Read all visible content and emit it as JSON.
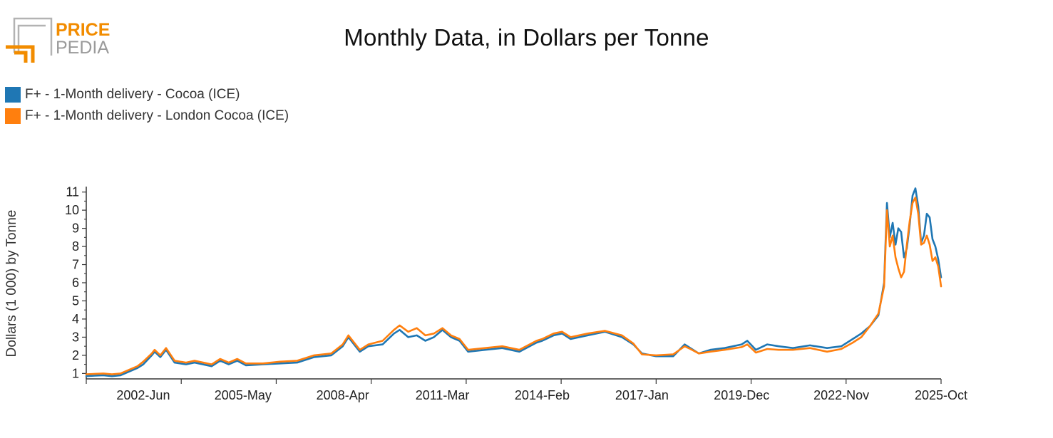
{
  "logo": {
    "line1": "PRICE",
    "line2": "PEDIA"
  },
  "chart_data": {
    "type": "line",
    "title": "Monthly Data, in Dollars per Tonne",
    "ylabel": "Dollars (1 000) by Tonne",
    "xlabel": "",
    "ylim": [
      0.7,
      11.3
    ],
    "y_ticks": [
      1,
      2,
      3,
      4,
      5,
      6,
      7,
      8,
      9,
      10,
      11
    ],
    "x_ticks": [
      "2002-Jun",
      "2005-May",
      "2008-Apr",
      "2011-Mar",
      "2014-Feb",
      "2017-Jan",
      "2019-Dec",
      "2022-Nov",
      "2025-Oct"
    ],
    "x_range": [
      "2000-Oct",
      "2025-Oct"
    ],
    "grid": false,
    "legend_position": "top-left",
    "series": [
      {
        "name": "F+ - 1-Month delivery - Cocoa (ICE)",
        "color": "#1f77b4",
        "points": [
          [
            "2000-10",
            0.85
          ],
          [
            "2001-01",
            0.88
          ],
          [
            "2001-04",
            0.9
          ],
          [
            "2001-07",
            0.85
          ],
          [
            "2001-10",
            0.9
          ],
          [
            "2002-01",
            1.1
          ],
          [
            "2002-04",
            1.3
          ],
          [
            "2002-06",
            1.5
          ],
          [
            "2002-09",
            2.0
          ],
          [
            "2002-10",
            2.2
          ],
          [
            "2002-12",
            1.9
          ],
          [
            "2003-02",
            2.3
          ],
          [
            "2003-05",
            1.6
          ],
          [
            "2003-09",
            1.5
          ],
          [
            "2003-12",
            1.6
          ],
          [
            "2004-06",
            1.4
          ],
          [
            "2004-09",
            1.7
          ],
          [
            "2004-12",
            1.5
          ],
          [
            "2005-03",
            1.7
          ],
          [
            "2005-06",
            1.45
          ],
          [
            "2005-12",
            1.5
          ],
          [
            "2006-06",
            1.55
          ],
          [
            "2006-12",
            1.6
          ],
          [
            "2007-06",
            1.9
          ],
          [
            "2007-12",
            2.0
          ],
          [
            "2008-04",
            2.5
          ],
          [
            "2008-06",
            3.0
          ],
          [
            "2008-10",
            2.2
          ],
          [
            "2009-01",
            2.5
          ],
          [
            "2009-06",
            2.6
          ],
          [
            "2009-10",
            3.2
          ],
          [
            "2009-12",
            3.4
          ],
          [
            "2010-03",
            3.0
          ],
          [
            "2010-06",
            3.1
          ],
          [
            "2010-09",
            2.8
          ],
          [
            "2010-12",
            3.0
          ],
          [
            "2011-03",
            3.4
          ],
          [
            "2011-06",
            3.0
          ],
          [
            "2011-09",
            2.8
          ],
          [
            "2011-12",
            2.2
          ],
          [
            "2012-06",
            2.3
          ],
          [
            "2012-12",
            2.4
          ],
          [
            "2013-06",
            2.2
          ],
          [
            "2013-12",
            2.7
          ],
          [
            "2014-02",
            2.8
          ],
          [
            "2014-06",
            3.1
          ],
          [
            "2014-09",
            3.2
          ],
          [
            "2014-12",
            2.9
          ],
          [
            "2015-06",
            3.1
          ],
          [
            "2015-12",
            3.3
          ],
          [
            "2016-06",
            3.0
          ],
          [
            "2016-10",
            2.6
          ],
          [
            "2017-01",
            2.1
          ],
          [
            "2017-06",
            1.95
          ],
          [
            "2017-12",
            1.95
          ],
          [
            "2018-04",
            2.6
          ],
          [
            "2018-06",
            2.4
          ],
          [
            "2018-09",
            2.1
          ],
          [
            "2019-01",
            2.3
          ],
          [
            "2019-06",
            2.4
          ],
          [
            "2019-12",
            2.6
          ],
          [
            "2020-02",
            2.8
          ],
          [
            "2020-05",
            2.3
          ],
          [
            "2020-09",
            2.6
          ],
          [
            "2021-01",
            2.5
          ],
          [
            "2021-06",
            2.4
          ],
          [
            "2021-12",
            2.55
          ],
          [
            "2022-06",
            2.4
          ],
          [
            "2022-11",
            2.5
          ],
          [
            "2023-03",
            2.9
          ],
          [
            "2023-06",
            3.2
          ],
          [
            "2023-09",
            3.6
          ],
          [
            "2023-12",
            4.2
          ],
          [
            "2024-02",
            6.0
          ],
          [
            "2024-03",
            10.4
          ],
          [
            "2024-04",
            8.5
          ],
          [
            "2024-05",
            9.3
          ],
          [
            "2024-06",
            8.1
          ],
          [
            "2024-07",
            9.0
          ],
          [
            "2024-08",
            8.8
          ],
          [
            "2024-09",
            7.4
          ],
          [
            "2024-10",
            7.9
          ],
          [
            "2024-11",
            9.2
          ],
          [
            "2024-12",
            10.8
          ],
          [
            "2025-01",
            11.2
          ],
          [
            "2025-02",
            10.2
          ],
          [
            "2025-03",
            8.2
          ],
          [
            "2025-04",
            8.6
          ],
          [
            "2025-05",
            9.8
          ],
          [
            "2025-06",
            9.6
          ],
          [
            "2025-07",
            8.4
          ],
          [
            "2025-08",
            8.0
          ],
          [
            "2025-09",
            7.3
          ],
          [
            "2025-10",
            6.3
          ]
        ]
      },
      {
        "name": "F+ - 1-Month delivery - London Cocoa (ICE)",
        "color": "#ff7f0e",
        "points": [
          [
            "2000-10",
            0.95
          ],
          [
            "2001-01",
            0.98
          ],
          [
            "2001-04",
            1.0
          ],
          [
            "2001-07",
            0.95
          ],
          [
            "2001-10",
            1.0
          ],
          [
            "2002-01",
            1.2
          ],
          [
            "2002-04",
            1.4
          ],
          [
            "2002-06",
            1.65
          ],
          [
            "2002-09",
            2.1
          ],
          [
            "2002-10",
            2.3
          ],
          [
            "2002-12",
            2.0
          ],
          [
            "2003-02",
            2.4
          ],
          [
            "2003-05",
            1.7
          ],
          [
            "2003-09",
            1.6
          ],
          [
            "2003-12",
            1.7
          ],
          [
            "2004-06",
            1.5
          ],
          [
            "2004-09",
            1.8
          ],
          [
            "2004-12",
            1.6
          ],
          [
            "2005-03",
            1.8
          ],
          [
            "2005-06",
            1.55
          ],
          [
            "2005-12",
            1.55
          ],
          [
            "2006-06",
            1.65
          ],
          [
            "2006-12",
            1.7
          ],
          [
            "2007-06",
            2.0
          ],
          [
            "2007-12",
            2.1
          ],
          [
            "2008-04",
            2.6
          ],
          [
            "2008-06",
            3.1
          ],
          [
            "2008-10",
            2.3
          ],
          [
            "2009-01",
            2.6
          ],
          [
            "2009-06",
            2.8
          ],
          [
            "2009-10",
            3.4
          ],
          [
            "2009-12",
            3.65
          ],
          [
            "2010-03",
            3.3
          ],
          [
            "2010-06",
            3.5
          ],
          [
            "2010-09",
            3.1
          ],
          [
            "2010-12",
            3.2
          ],
          [
            "2011-03",
            3.5
          ],
          [
            "2011-06",
            3.1
          ],
          [
            "2011-09",
            2.9
          ],
          [
            "2011-12",
            2.3
          ],
          [
            "2012-06",
            2.4
          ],
          [
            "2012-12",
            2.5
          ],
          [
            "2013-06",
            2.3
          ],
          [
            "2013-12",
            2.8
          ],
          [
            "2014-02",
            2.9
          ],
          [
            "2014-06",
            3.2
          ],
          [
            "2014-09",
            3.3
          ],
          [
            "2014-12",
            3.0
          ],
          [
            "2015-06",
            3.2
          ],
          [
            "2015-12",
            3.35
          ],
          [
            "2016-06",
            3.1
          ],
          [
            "2016-10",
            2.65
          ],
          [
            "2017-01",
            2.05
          ],
          [
            "2017-06",
            2.0
          ],
          [
            "2017-12",
            2.05
          ],
          [
            "2018-04",
            2.5
          ],
          [
            "2018-06",
            2.35
          ],
          [
            "2018-09",
            2.1
          ],
          [
            "2019-01",
            2.2
          ],
          [
            "2019-06",
            2.3
          ],
          [
            "2019-12",
            2.45
          ],
          [
            "2020-02",
            2.6
          ],
          [
            "2020-05",
            2.15
          ],
          [
            "2020-09",
            2.35
          ],
          [
            "2021-01",
            2.3
          ],
          [
            "2021-06",
            2.3
          ],
          [
            "2021-12",
            2.4
          ],
          [
            "2022-06",
            2.2
          ],
          [
            "2022-11",
            2.35
          ],
          [
            "2023-03",
            2.7
          ],
          [
            "2023-06",
            3.0
          ],
          [
            "2023-09",
            3.6
          ],
          [
            "2023-12",
            4.3
          ],
          [
            "2024-02",
            5.8
          ],
          [
            "2024-03",
            10.0
          ],
          [
            "2024-04",
            8.0
          ],
          [
            "2024-05",
            8.6
          ],
          [
            "2024-06",
            7.4
          ],
          [
            "2024-07",
            6.8
          ],
          [
            "2024-08",
            6.3
          ],
          [
            "2024-09",
            6.6
          ],
          [
            "2024-10",
            8.1
          ],
          [
            "2024-11",
            9.4
          ],
          [
            "2024-12",
            10.4
          ],
          [
            "2025-01",
            10.7
          ],
          [
            "2025-02",
            9.8
          ],
          [
            "2025-03",
            8.1
          ],
          [
            "2025-04",
            8.2
          ],
          [
            "2025-05",
            8.6
          ],
          [
            "2025-06",
            8.1
          ],
          [
            "2025-07",
            7.2
          ],
          [
            "2025-08",
            7.4
          ],
          [
            "2025-09",
            6.9
          ],
          [
            "2025-10",
            5.8
          ]
        ]
      }
    ]
  }
}
